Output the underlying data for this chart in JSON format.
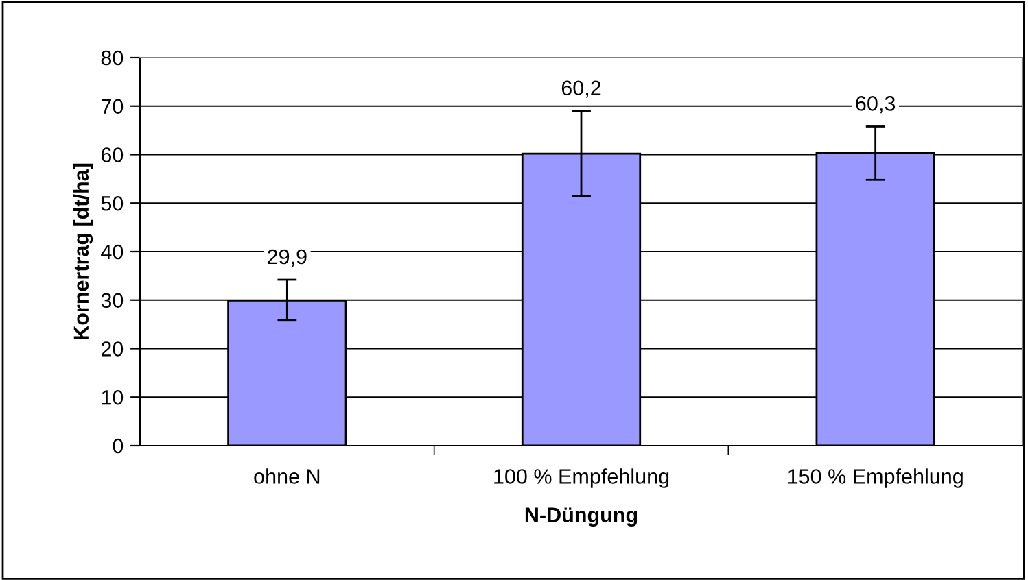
{
  "chart_data": {
    "type": "bar",
    "xlabel": "N-Düngung",
    "ylabel": "Kornertrag [dt/ha]",
    "categories": [
      "ohne N",
      "100 % Empfehlung",
      "150 % Empfehlung"
    ],
    "values": [
      29.9,
      60.2,
      60.3
    ],
    "errors": [
      [
        25.9,
        34.2
      ],
      [
        51.5,
        69.0
      ],
      [
        54.8,
        65.8
      ]
    ],
    "value_labels": [
      "29,9",
      "60,2",
      "60,3"
    ],
    "color": "#9999ff",
    "ylim": [
      0,
      80
    ],
    "yticks": [
      0,
      10,
      20,
      30,
      40,
      50,
      60,
      70,
      80
    ],
    "grid": "y",
    "legend": false
  }
}
